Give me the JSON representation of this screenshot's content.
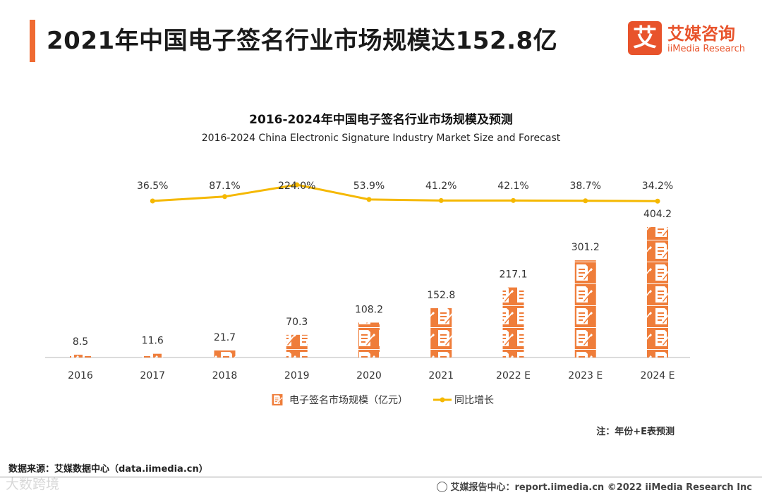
{
  "header": {
    "title": "2021年中国电子签名行业市场规模达152.8亿"
  },
  "logo": {
    "mark": "艾",
    "cn": "艾媒咨询",
    "en": "iiMedia Research"
  },
  "chart_data": {
    "type": "bar+line",
    "title": "2016-2024年中国电子签名行业市场规模及预测",
    "subtitle": "2016-2024 China Electronic Signature Industry Market Size and Forecast",
    "categories": [
      "2016",
      "2017",
      "2018",
      "2019",
      "2020",
      "2021",
      "2022 E",
      "2023 E",
      "2024 E"
    ],
    "series": [
      {
        "name": "电子签名市场规模（亿元）",
        "type": "bar",
        "values": [
          8.5,
          11.6,
          21.7,
          70.3,
          108.2,
          152.8,
          217.1,
          301.2,
          404.2
        ],
        "labels": [
          "8.5",
          "11.6",
          "21.7",
          "70.3",
          "108.2",
          "152.8",
          "217.1",
          "301.2",
          "404.2"
        ],
        "color": "#ef7d3a"
      },
      {
        "name": "同比增长",
        "type": "line",
        "values": [
          null,
          36.5,
          87.1,
          224.0,
          53.9,
          41.2,
          42.1,
          38.7,
          34.2
        ],
        "labels": [
          "",
          "36.5%",
          "87.1%",
          "224.0%",
          "53.9%",
          "41.2%",
          "42.1%",
          "38.7%",
          "34.2%"
        ],
        "color": "#f5b800"
      }
    ],
    "bar_ylim": [
      0,
      404.2
    ],
    "legend_position": "bottom"
  },
  "note": "注：年份+E表预测",
  "source": "数据来源：艾媒数据中心（data.iimedia.cn）",
  "footer": {
    "text": "艾媒报告中心：report.iimedia.cn   ©2022  iiMedia Research  Inc"
  },
  "watermark": "大数跨境"
}
